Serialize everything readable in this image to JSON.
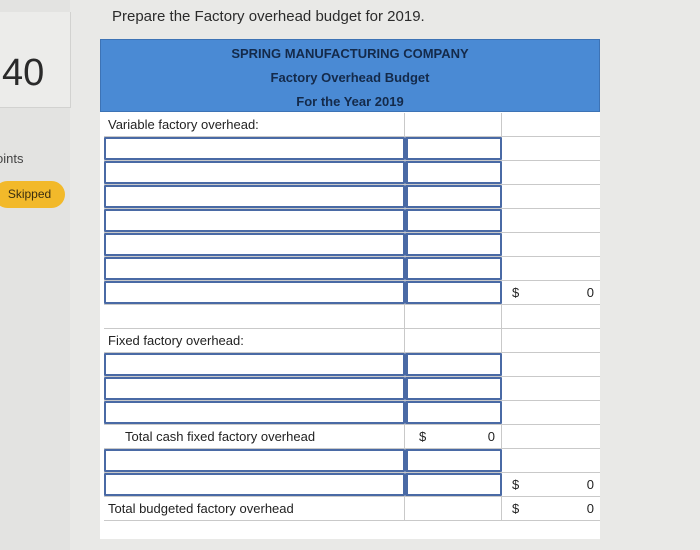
{
  "side": {
    "points": "40",
    "points_label": "oints",
    "status": "Skipped"
  },
  "prompt": "Prepare the Factory overhead budget for 2019.",
  "header": {
    "company": "SPRING MANUFACTURING COMPANY",
    "title": "Factory Overhead Budget",
    "period": "For the Year 2019"
  },
  "sections": {
    "variable_label": "Variable factory overhead:",
    "variable_total": {
      "currency": "$",
      "value": "0"
    },
    "fixed_label": "Fixed factory overhead:",
    "cash_fixed_label": "Total cash fixed factory overhead",
    "cash_fixed_total": {
      "currency": "$",
      "value": "0"
    },
    "fixed_total": {
      "currency": "$",
      "value": "0"
    },
    "budget_label": "Total budgeted factory overhead",
    "budget_total": {
      "currency": "$",
      "value": "0"
    }
  }
}
